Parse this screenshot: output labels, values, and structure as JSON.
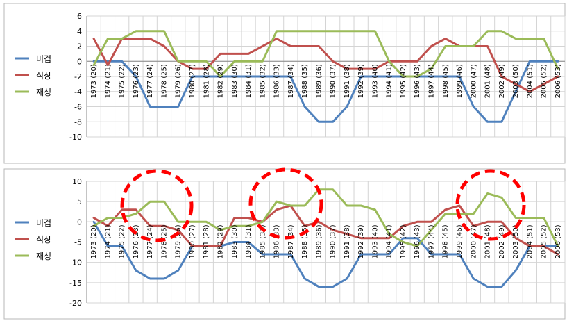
{
  "chart_data": [
    {
      "type": "line",
      "title": "",
      "xlabel": "",
      "ylabel": "",
      "ylim": [
        -10,
        6
      ],
      "yticks": [
        6,
        4,
        2,
        0,
        -2,
        -4,
        -6,
        -8,
        -10
      ],
      "grid": true,
      "legend_position": "left",
      "categories": [
        "1973 (20)",
        "1974 (21)",
        "1975 (22)",
        "1976 (23)",
        "1977 (24)",
        "1978 (25)",
        "1979 (26)",
        "1980 (27)",
        "1981 (28)",
        "1982 (29)",
        "1983 (30)",
        "1984 (31)",
        "1985 (32)",
        "1986 (33)",
        "1987 (34)",
        "1988 (35)",
        "1989 (36)",
        "1990 (37)",
        "1991 (38)",
        "1992 (39)",
        "1993 (40)",
        "1994 (41)",
        "1995 (42)",
        "1996 (43)",
        "1997 (44)",
        "1998 (45)",
        "1999 (46)",
        "2000 (47)",
        "2001 (48)",
        "2002 (49)",
        "2003 (50)",
        "2004 (51)",
        "2005 (52)",
        "2006 (53)"
      ],
      "series": [
        {
          "name": "비겁",
          "color": "#4f81bd",
          "values": [
            0,
            0,
            0,
            -2,
            -6,
            -6,
            -6,
            -2,
            -2,
            -2,
            -2,
            -2,
            -2,
            -2,
            -2,
            -6,
            -8,
            -8,
            -6,
            -2,
            -2,
            -2,
            -2,
            -2,
            -2,
            -2,
            -2,
            -6,
            -8,
            -8,
            -4,
            0,
            0,
            0
          ]
        },
        {
          "name": "식상",
          "color": "#c0504d",
          "values": [
            3,
            -0.5,
            3,
            3,
            3,
            2,
            0,
            -1,
            -1,
            1,
            1,
            1,
            2,
            3,
            2,
            2,
            2,
            0,
            -1,
            -1,
            -1,
            0,
            0,
            0,
            2,
            3,
            2,
            2,
            2,
            -2,
            -3,
            -4,
            -3,
            -2
          ]
        },
        {
          "name": "재성",
          "color": "#9bbb59",
          "values": [
            -0.5,
            3,
            3,
            4,
            4,
            4,
            0,
            0,
            0,
            -2,
            0,
            0,
            0,
            4,
            4,
            4,
            4,
            4,
            4,
            4,
            4,
            0,
            -2,
            -2,
            -1,
            2,
            2,
            2,
            4,
            4,
            3,
            3,
            3,
            -1
          ]
        }
      ]
    },
    {
      "type": "line",
      "title": "",
      "xlabel": "",
      "ylabel": "",
      "ylim": [
        -20,
        10
      ],
      "yticks": [
        10,
        5,
        0,
        -5,
        -10,
        -15,
        -20
      ],
      "grid": true,
      "legend_position": "left",
      "categories": [
        "1973 (20)",
        "1974 (21)",
        "1975 (22)",
        "1976 (23)",
        "1977 (24)",
        "1978 (25)",
        "1979 (26)",
        "1980 (27)",
        "1981 (28)",
        "1982 (29)",
        "1983 (30)",
        "1984 (31)",
        "1985 (32)",
        "1986 (33)",
        "1987 (34)",
        "1988 (35)",
        "1989 (36)",
        "1990 (37)",
        "1991 (38)",
        "1992 (39)",
        "1993 (40)",
        "1994 (41)",
        "1995 (42)",
        "1996 (43)",
        "1997 (44)",
        "1998 (45)",
        "1999 (46)",
        "2000 (47)",
        "2001 (48)",
        "2002 (49)",
        "2003 (50)",
        "2004 (51)",
        "2005 (52)",
        "2006 (53)"
      ],
      "series": [
        {
          "name": "비겁",
          "color": "#4f81bd",
          "values": [
            0,
            -6,
            -6,
            -12,
            -14,
            -14,
            -12,
            -6,
            -6,
            -6,
            -5,
            -5,
            -8,
            -8,
            -8,
            -14,
            -16,
            -16,
            -14,
            -8,
            -8,
            -8,
            -4,
            -4,
            -8,
            -8,
            -8,
            -14,
            -16,
            -16,
            -12,
            -6,
            -6,
            -6
          ]
        },
        {
          "name": "식상",
          "color": "#c0504d",
          "values": [
            1,
            -1,
            3,
            3,
            -1,
            -1,
            -2,
            -6,
            -6,
            -6,
            1,
            1,
            0,
            3,
            4,
            -1,
            0,
            -2,
            -3,
            -4,
            -4,
            -4,
            -1,
            0,
            0,
            3,
            4,
            -1,
            0,
            0,
            -4,
            -6,
            -6,
            -8
          ]
        },
        {
          "name": "재성",
          "color": "#9bbb59",
          "values": [
            -1,
            1,
            1,
            2,
            5,
            5,
            0,
            0,
            0,
            -2,
            -1,
            -1,
            0,
            5,
            4,
            4,
            8,
            8,
            4,
            4,
            3,
            -3,
            -5,
            -6,
            -2,
            2,
            2,
            2,
            7,
            6,
            1,
            1,
            1,
            -6
          ]
        }
      ],
      "annotations": [
        "dashed red circle around 1977–1979 peak",
        "dashed red circle around 1986–1988 peak",
        "dashed red circle around 2000–2002 peak"
      ]
    }
  ]
}
